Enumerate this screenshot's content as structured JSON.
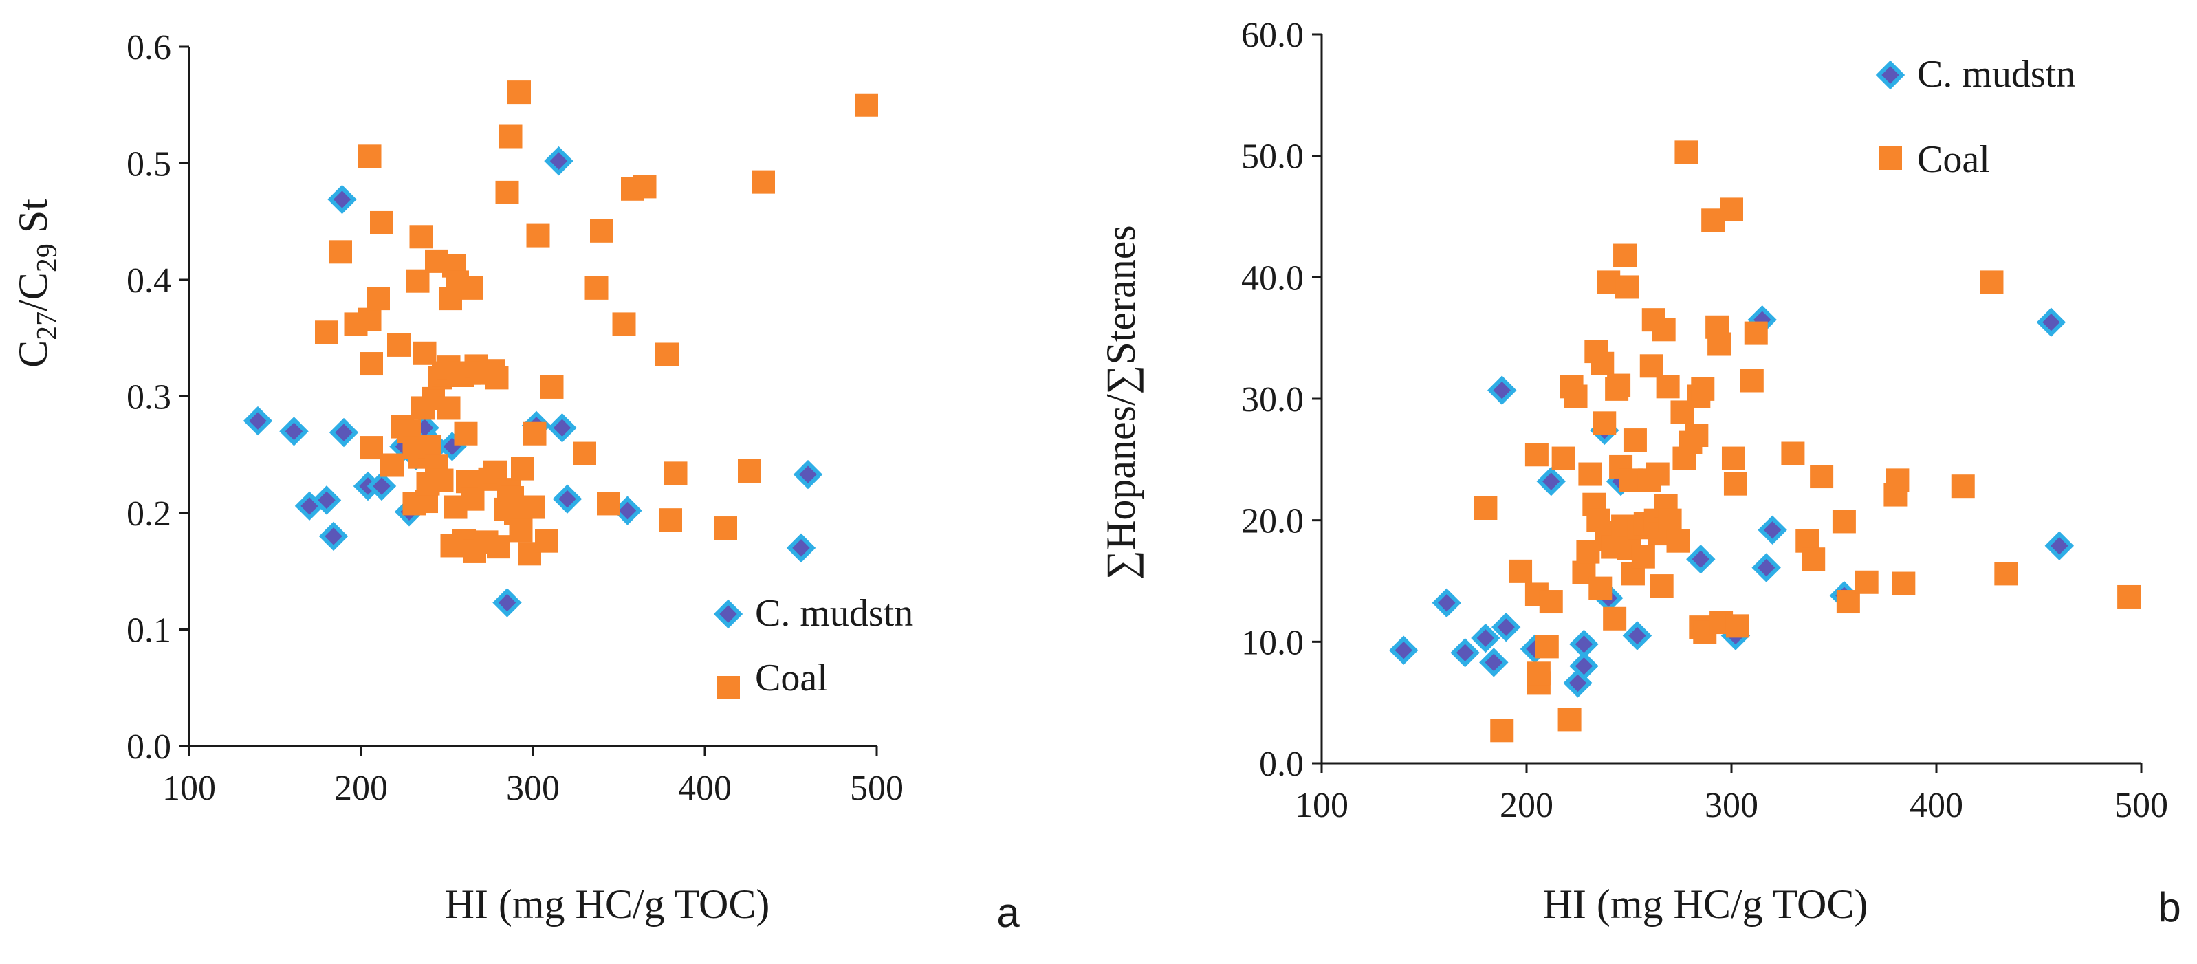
{
  "colors": {
    "mudstone_fill": "#5b57b8",
    "mudstone_edge": "#2eaee6",
    "coal": "#f7852b",
    "axis": "#1a1a1a"
  },
  "chart_data": [
    {
      "type": "scatter",
      "panel_label": "a",
      "xlabel": "HI (mg HC/g TOC)",
      "ylabel": {
        "p1": "C",
        "s1": "27",
        "p2": "/C",
        "s2": "29",
        "p3": " St"
      },
      "xlim": [
        100,
        500
      ],
      "ylim": [
        0.0,
        0.6
      ],
      "x_ticks": [
        "100",
        "200",
        "300",
        "400",
        "500"
      ],
      "y_ticks": [
        "0.0",
        "0.1",
        "0.2",
        "0.3",
        "0.4",
        "0.5",
        "0.6"
      ],
      "legend_position": "bottom-right",
      "grid": false,
      "series": [
        {
          "name": "C. mudstn",
          "marker": "diamond",
          "points": [
            [
              140,
              0.279
            ],
            [
              161,
              0.27
            ],
            [
              170,
              0.206
            ],
            [
              180,
              0.211
            ],
            [
              184,
              0.18
            ],
            [
              189,
              0.469
            ],
            [
              190,
              0.269
            ],
            [
              204,
              0.223
            ],
            [
              212,
              0.223
            ],
            [
              225,
              0.257
            ],
            [
              228,
              0.201
            ],
            [
              232,
              0.249
            ],
            [
              237,
              0.273
            ],
            [
              243,
              0.257
            ],
            [
              253,
              0.257
            ],
            [
              285,
              0.123
            ],
            [
              302,
              0.275
            ],
            [
              315,
              0.502
            ],
            [
              317,
              0.273
            ],
            [
              320,
              0.212
            ],
            [
              355,
              0.202
            ],
            [
              456,
              0.17
            ],
            [
              460,
              0.233
            ]
          ]
        },
        {
          "name": "Coal",
          "marker": "square",
          "points": [
            [
              180,
              0.355
            ],
            [
              188,
              0.424
            ],
            [
              197,
              0.362
            ],
            [
              205,
              0.506
            ],
            [
              205,
              0.366
            ],
            [
              206,
              0.328
            ],
            [
              206,
              0.256
            ],
            [
              210,
              0.384
            ],
            [
              212,
              0.449
            ],
            [
              218,
              0.241
            ],
            [
              222,
              0.344
            ],
            [
              224,
              0.274
            ],
            [
              228,
              0.27
            ],
            [
              231,
              0.208
            ],
            [
              231,
              0.256
            ],
            [
              233,
              0.399
            ],
            [
              234,
              0.248
            ],
            [
              235,
              0.437
            ],
            [
              236,
              0.29
            ],
            [
              237,
              0.337
            ],
            [
              238,
              0.21
            ],
            [
              239,
              0.225
            ],
            [
              240,
              0.257
            ],
            [
              242,
              0.298
            ],
            [
              244,
              0.416
            ],
            [
              244,
              0.24
            ],
            [
              246,
              0.316
            ],
            [
              247,
              0.228
            ],
            [
              248,
              0.318
            ],
            [
              249,
              0.32
            ],
            [
              251,
              0.29
            ],
            [
              251,
              0.325
            ],
            [
              252,
              0.384
            ],
            [
              253,
              0.172
            ],
            [
              254,
              0.412
            ],
            [
              255,
              0.205
            ],
            [
              256,
              0.398
            ],
            [
              257,
              0.32
            ],
            [
              259,
              0.318
            ],
            [
              260,
              0.176
            ],
            [
              261,
              0.268
            ],
            [
              262,
              0.227
            ],
            [
              263,
              0.32
            ],
            [
              264,
              0.393
            ],
            [
              265,
              0.212
            ],
            [
              266,
              0.167
            ],
            [
              267,
              0.326
            ],
            [
              270,
              0.32
            ],
            [
              273,
              0.175
            ],
            [
              275,
              0.229
            ],
            [
              277,
              0.322
            ],
            [
              278,
              0.235
            ],
            [
              279,
              0.316
            ],
            [
              280,
              0.171
            ],
            [
              284,
              0.203
            ],
            [
              285,
              0.475
            ],
            [
              286,
              0.22
            ],
            [
              287,
              0.523
            ],
            [
              288,
              0.213
            ],
            [
              290,
              0.2
            ],
            [
              292,
              0.561
            ],
            [
              293,
              0.185
            ],
            [
              294,
              0.238
            ],
            [
              298,
              0.165
            ],
            [
              300,
              0.205
            ],
            [
              301,
              0.268
            ],
            [
              303,
              0.438
            ],
            [
              308,
              0.176
            ],
            [
              311,
              0.308
            ],
            [
              330,
              0.251
            ],
            [
              337,
              0.393
            ],
            [
              340,
              0.442
            ],
            [
              344,
              0.208
            ],
            [
              353,
              0.362
            ],
            [
              358,
              0.478
            ],
            [
              365,
              0.48
            ],
            [
              378,
              0.336
            ],
            [
              380,
              0.194
            ],
            [
              383,
              0.234
            ],
            [
              412,
              0.187
            ],
            [
              426,
              0.236
            ],
            [
              434,
              0.484
            ],
            [
              494,
              0.55
            ]
          ]
        }
      ]
    },
    {
      "type": "scatter",
      "panel_label": "b",
      "xlabel": "HI (mg HC/g TOC)",
      "ylabel": "∑Hopanes/∑Steranes",
      "xlim": [
        100,
        500
      ],
      "ylim": [
        0.0,
        60.0
      ],
      "x_ticks": [
        "100",
        "200",
        "300",
        "400",
        "500"
      ],
      "y_ticks": [
        "0.0",
        "10.0",
        "20.0",
        "30.0",
        "40.0",
        "50.0",
        "60.0"
      ],
      "legend_position": "top-right",
      "grid": false,
      "series": [
        {
          "name": "C. mudstn",
          "marker": "diamond",
          "points": [
            [
              140,
              9.3
            ],
            [
              161,
              13.2
            ],
            [
              170,
              9.1
            ],
            [
              180,
              10.3
            ],
            [
              184,
              8.3
            ],
            [
              188,
              30.7
            ],
            [
              190,
              11.2
            ],
            [
              204,
              9.4
            ],
            [
              212,
              23.2
            ],
            [
              225,
              6.6
            ],
            [
              228,
              9.8
            ],
            [
              228,
              8.0
            ],
            [
              238,
              27.4
            ],
            [
              240,
              13.6
            ],
            [
              246,
              23.2
            ],
            [
              254,
              10.5
            ],
            [
              285,
              16.8
            ],
            [
              302,
              10.5
            ],
            [
              315,
              36.5
            ],
            [
              317,
              16.1
            ],
            [
              320,
              19.2
            ],
            [
              355,
              13.8
            ],
            [
              456,
              36.3
            ],
            [
              460,
              17.9
            ]
          ]
        },
        {
          "name": "Coal",
          "marker": "square",
          "points": [
            [
              180,
              21.0
            ],
            [
              188,
              2.7
            ],
            [
              197,
              15.8
            ],
            [
              205,
              25.4
            ],
            [
              205,
              13.9
            ],
            [
              206,
              6.6
            ],
            [
              206,
              7.4
            ],
            [
              210,
              9.6
            ],
            [
              212,
              13.3
            ],
            [
              218,
              25.1
            ],
            [
              221,
              3.6
            ],
            [
              222,
              31.0
            ],
            [
              224,
              30.2
            ],
            [
              228,
              15.7
            ],
            [
              230,
              17.4
            ],
            [
              231,
              23.8
            ],
            [
              233,
              21.3
            ],
            [
              234,
              33.9
            ],
            [
              235,
              20.0
            ],
            [
              236,
              14.4
            ],
            [
              237,
              32.9
            ],
            [
              238,
              28.0
            ],
            [
              239,
              18.4
            ],
            [
              240,
              39.6
            ],
            [
              241,
              19.0
            ],
            [
              242,
              17.8
            ],
            [
              243,
              11.9
            ],
            [
              244,
              30.8
            ],
            [
              245,
              31.1
            ],
            [
              246,
              24.4
            ],
            [
              247,
              19.5
            ],
            [
              248,
              41.8
            ],
            [
              249,
              39.2
            ],
            [
              250,
              17.7
            ],
            [
              251,
              23.3
            ],
            [
              252,
              15.6
            ],
            [
              253,
              26.6
            ],
            [
              255,
              19.4
            ],
            [
              257,
              17.0
            ],
            [
              258,
              19.7
            ],
            [
              260,
              23.3
            ],
            [
              261,
              32.7
            ],
            [
              262,
              36.5
            ],
            [
              263,
              20.0
            ],
            [
              264,
              23.8
            ],
            [
              265,
              18.9
            ],
            [
              266,
              14.6
            ],
            [
              267,
              35.7
            ],
            [
              268,
              21.2
            ],
            [
              269,
              31.0
            ],
            [
              270,
              20.0
            ],
            [
              274,
              18.3
            ],
            [
              276,
              28.9
            ],
            [
              277,
              25.1
            ],
            [
              278,
              50.3
            ],
            [
              280,
              26.4
            ],
            [
              283,
              27.0
            ],
            [
              284,
              30.2
            ],
            [
              285,
              11.2
            ],
            [
              286,
              30.8
            ],
            [
              287,
              10.8
            ],
            [
              291,
              44.7
            ],
            [
              293,
              35.9
            ],
            [
              294,
              34.5
            ],
            [
              295,
              11.6
            ],
            [
              300,
              45.6
            ],
            [
              301,
              25.1
            ],
            [
              302,
              23.0
            ],
            [
              303,
              11.3
            ],
            [
              310,
              31.5
            ],
            [
              312,
              35.4
            ],
            [
              330,
              25.5
            ],
            [
              337,
              18.3
            ],
            [
              340,
              16.8
            ],
            [
              344,
              23.6
            ],
            [
              355,
              19.9
            ],
            [
              357,
              13.3
            ],
            [
              366,
              14.9
            ],
            [
              380,
              22.1
            ],
            [
              381,
              23.3
            ],
            [
              384,
              14.8
            ],
            [
              413,
              22.8
            ],
            [
              427,
              39.6
            ],
            [
              434,
              15.6
            ],
            [
              494,
              13.7
            ]
          ]
        }
      ]
    }
  ]
}
